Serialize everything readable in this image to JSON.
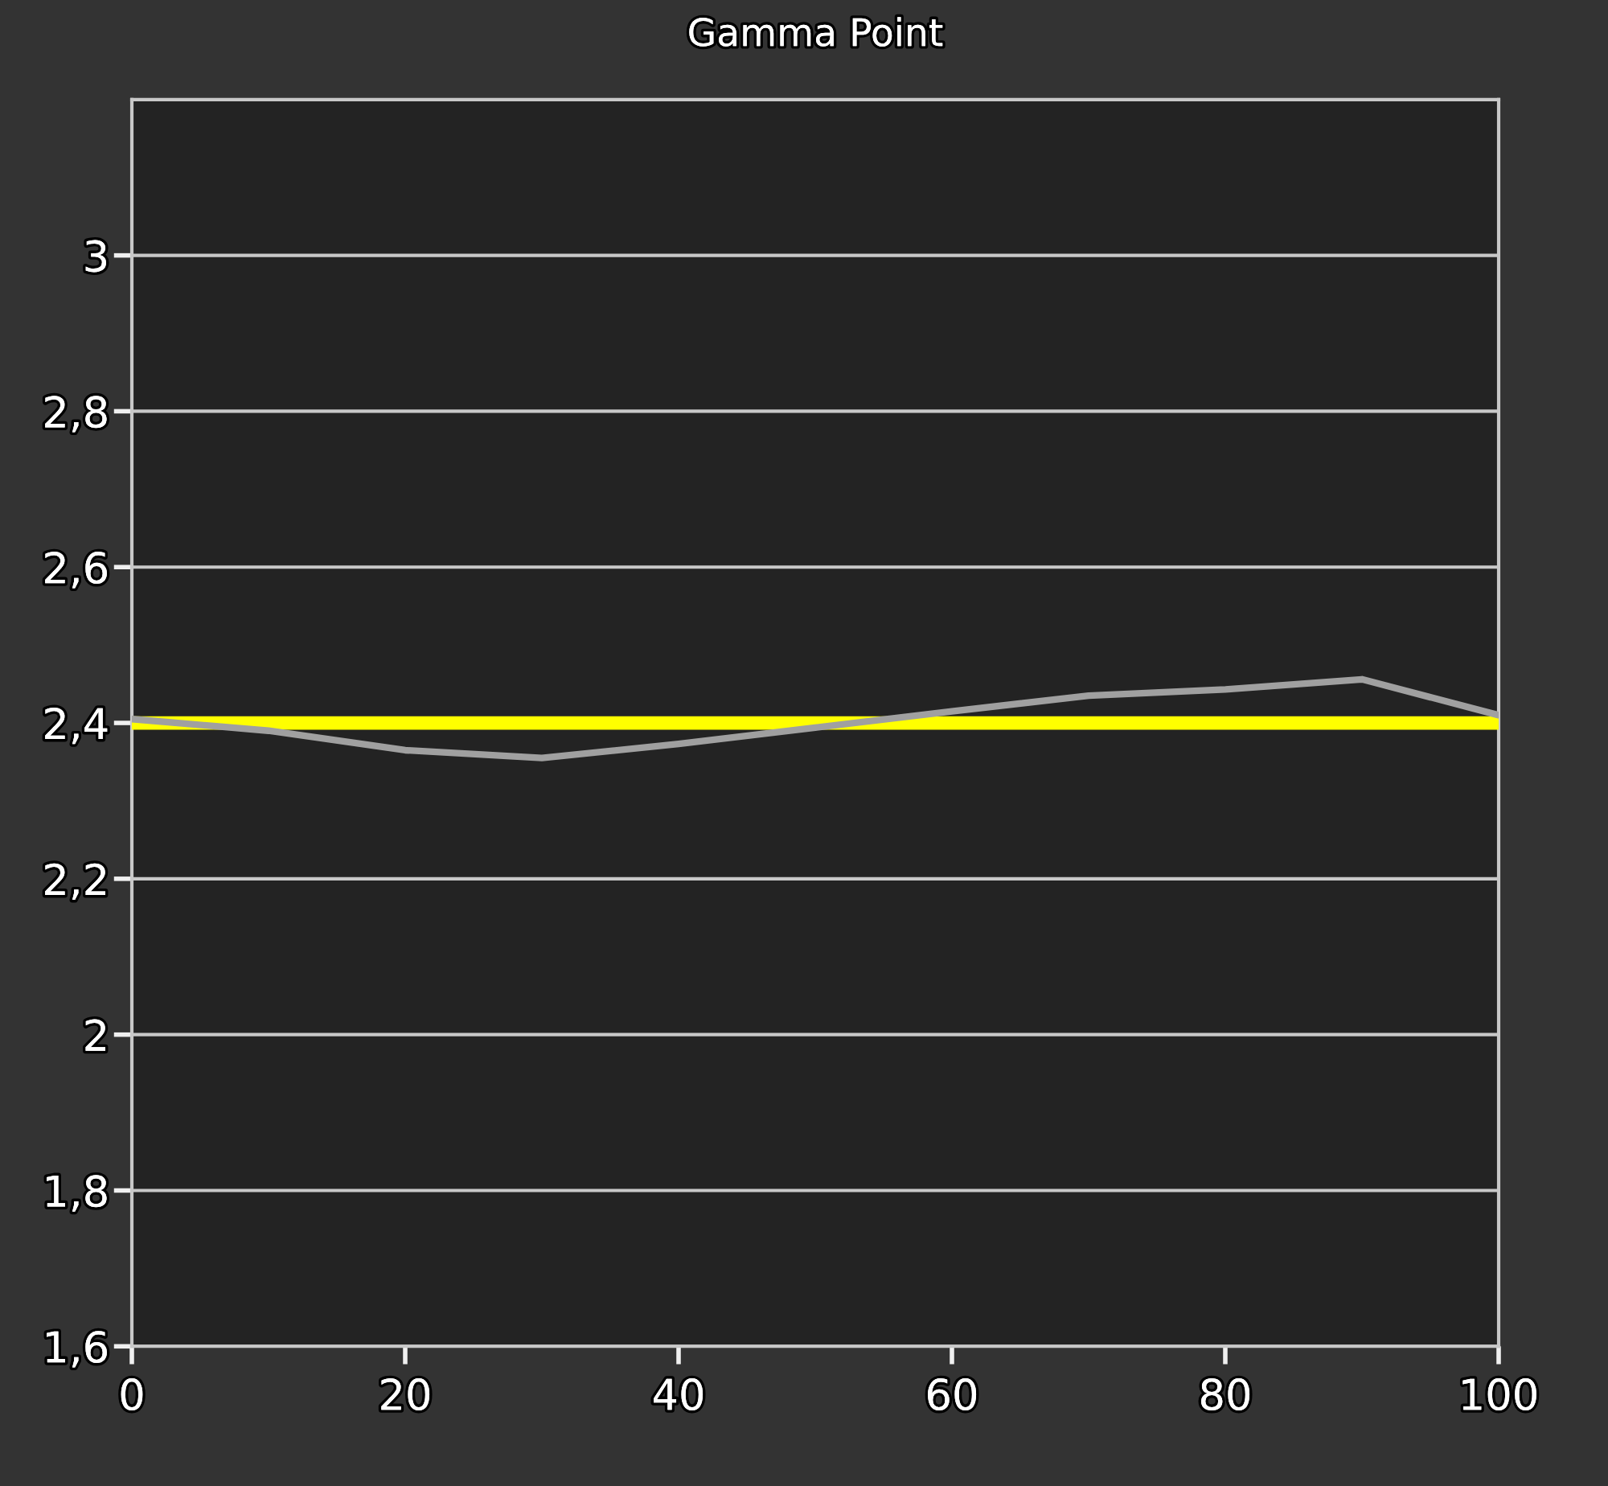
{
  "chart_data": {
    "type": "line",
    "title": "Gamma Point",
    "x": [
      0,
      10,
      20,
      30,
      40,
      50,
      60,
      70,
      80,
      90,
      100
    ],
    "series": [
      {
        "color": "#a0a0a0",
        "values": [
          2.405,
          2.39,
          2.365,
          2.355,
          2.373,
          2.394,
          2.415,
          2.435,
          2.443,
          2.456,
          2.41
        ]
      }
    ],
    "ref_lines": [
      {
        "axis": "y",
        "value": 2.4,
        "color": "#ffff00"
      }
    ],
    "xlim": [
      0,
      100
    ],
    "xticks": [
      0,
      20,
      40,
      60,
      80,
      100
    ],
    "ylim": [
      1.6,
      3.2
    ],
    "yticks": [
      {
        "value": 1.6,
        "label": "1,6"
      },
      {
        "value": 1.8,
        "label": "1,8"
      },
      2,
      {
        "value": 2.2,
        "label": "2,2"
      },
      {
        "value": 2.4,
        "label": "2,4"
      },
      {
        "value": 2.6,
        "label": "2,6"
      },
      {
        "value": 2.8,
        "label": "2,8"
      },
      3
    ],
    "grid": "y"
  }
}
